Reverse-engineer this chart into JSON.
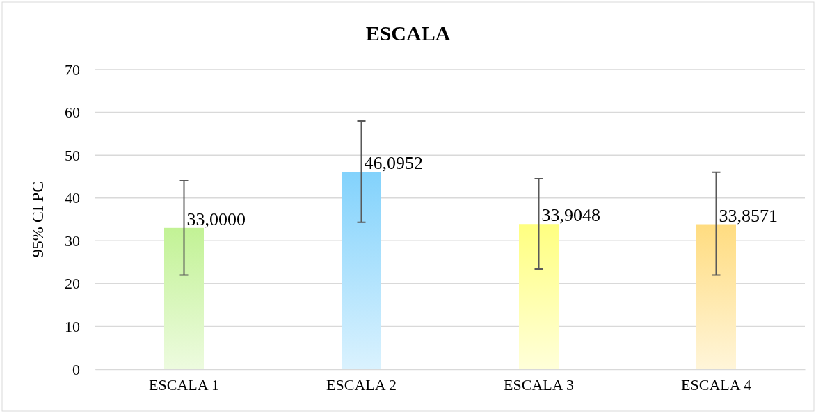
{
  "chart_data": {
    "type": "bar",
    "title": "ESCALA",
    "ylabel": "95% CI PC",
    "categories": [
      "ESCALA 1",
      "ESCALA 2",
      "ESCALA 3",
      "ESCALA 4"
    ],
    "values": [
      33.0,
      46.0952,
      33.9048,
      33.8571
    ],
    "value_labels": [
      "33,0000",
      "46,0952",
      "33,9048",
      "33,8571"
    ],
    "errors": [
      [
        22,
        44
      ],
      [
        34.3,
        58
      ],
      [
        23.4,
        44.5
      ],
      [
        22,
        46
      ]
    ],
    "colors": [
      "#c2f295",
      "#82d2fc",
      "#ffff80",
      "#ffdc80"
    ],
    "ylim": [
      0,
      70
    ],
    "yticks": [
      0,
      10,
      20,
      30,
      40,
      50,
      60,
      70
    ],
    "grid": "y"
  }
}
